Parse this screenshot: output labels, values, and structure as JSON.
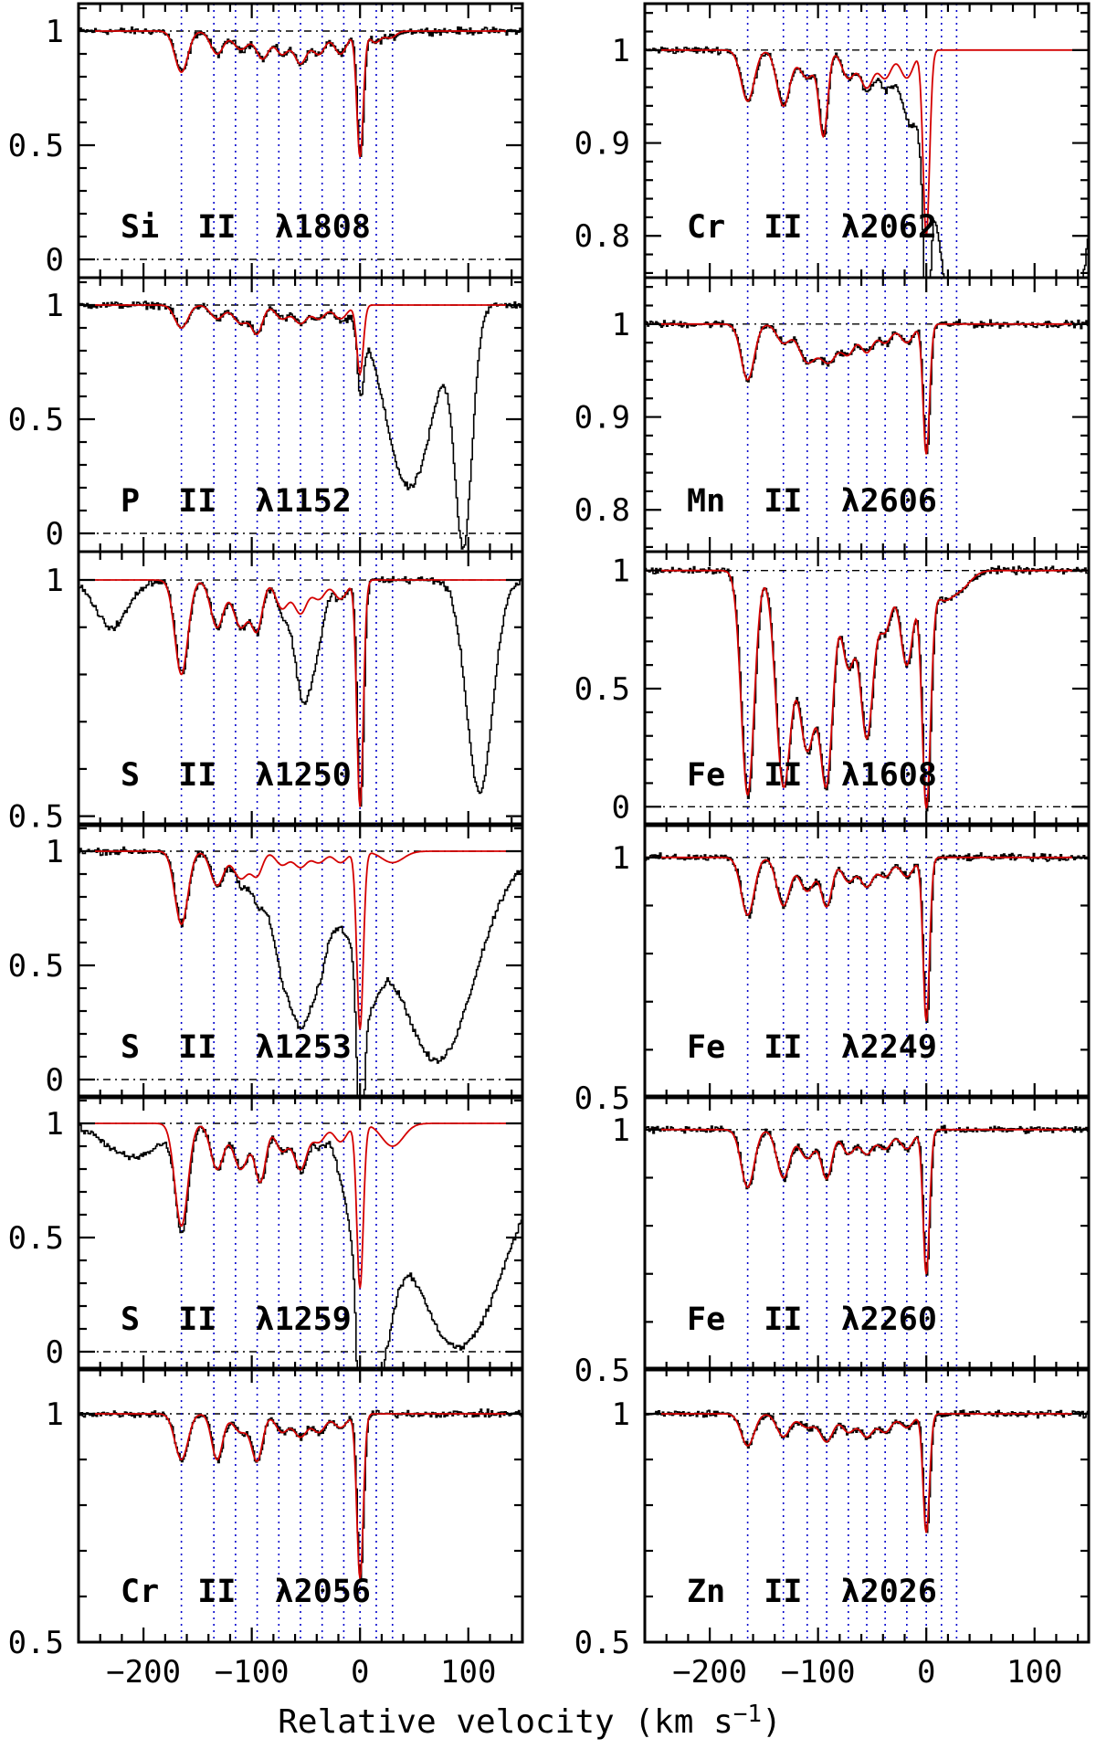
{
  "figure": {
    "xlabel": "Relative velocity (km s",
    "xlabel_sup": "−1",
    "xlabel_close": ")"
  },
  "colors": {
    "data": "#000000",
    "model": "#d40000",
    "components": "#0000cc",
    "continuum": "#000000"
  },
  "chart_data": [
    {
      "type": "line",
      "title": "Si II λ1808",
      "label": "Si  II  λ1808",
      "xlim": [
        -260,
        150
      ],
      "ylim": [
        -0.08,
        1.12
      ],
      "yticks": [
        0,
        0.5,
        1
      ],
      "ytick_labels": [
        "0",
        "0.5",
        "1"
      ],
      "zero_line": true,
      "absorption": [
        [
          -165,
          0.18,
          6
        ],
        [
          -132,
          0.1,
          6
        ],
        [
          -110,
          0.08,
          7
        ],
        [
          -90,
          0.12,
          6
        ],
        [
          -72,
          0.1,
          6
        ],
        [
          -55,
          0.14,
          6
        ],
        [
          -38,
          0.1,
          6
        ],
        [
          -18,
          0.1,
          6
        ],
        [
          0,
          0.55,
          3
        ],
        [
          14,
          0.05,
          5
        ],
        [
          28,
          0.03,
          5
        ]
      ],
      "blends": []
    },
    {
      "type": "line",
      "title": "Cr II λ2062",
      "label": "Cr  II  λ2062",
      "xlim": [
        -260,
        150
      ],
      "ylim": [
        0.755,
        1.05
      ],
      "yticks": [
        0.8,
        0.9,
        1
      ],
      "ytick_labels": [
        "0.8",
        "0.9",
        "1"
      ],
      "zero_line": false,
      "absorption": [
        [
          -165,
          0.055,
          6
        ],
        [
          -132,
          0.06,
          6
        ],
        [
          -110,
          0.03,
          7
        ],
        [
          -95,
          0.09,
          4
        ],
        [
          -72,
          0.03,
          6
        ],
        [
          -55,
          0.04,
          6
        ],
        [
          -38,
          0.03,
          6
        ],
        [
          -18,
          0.03,
          6
        ],
        [
          0,
          0.2,
          3
        ]
      ],
      "blends": [
        [
          80,
          0.9,
          40
        ]
      ]
    },
    {
      "type": "line",
      "title": "P II λ1152",
      "label": "P  II  λ1152",
      "xlim": [
        -260,
        150
      ],
      "ylim": [
        -0.08,
        1.12
      ],
      "yticks": [
        0,
        0.5,
        1
      ],
      "ytick_labels": [
        "0",
        "0.5",
        "1"
      ],
      "zero_line": true,
      "absorption": [
        [
          -165,
          0.1,
          6
        ],
        [
          -132,
          0.06,
          6
        ],
        [
          -110,
          0.08,
          7
        ],
        [
          -95,
          0.12,
          5
        ],
        [
          -72,
          0.06,
          6
        ],
        [
          -55,
          0.08,
          6
        ],
        [
          -38,
          0.06,
          6
        ],
        [
          -18,
          0.06,
          6
        ],
        [
          0,
          0.3,
          3
        ]
      ],
      "blends": [
        [
          45,
          0.8,
          22
        ],
        [
          95,
          1.0,
          8
        ]
      ]
    },
    {
      "type": "line",
      "title": "Mn II λ2606",
      "label": "Mn  II  λ2606",
      "xlim": [
        -260,
        150
      ],
      "ylim": [
        0.755,
        1.05
      ],
      "yticks": [
        0.8,
        0.9,
        1
      ],
      "ytick_labels": [
        "0.8",
        "0.9",
        "1"
      ],
      "zero_line": false,
      "absorption": [
        [
          -165,
          0.06,
          6
        ],
        [
          -132,
          0.02,
          6
        ],
        [
          -110,
          0.04,
          8
        ],
        [
          -90,
          0.04,
          8
        ],
        [
          -72,
          0.03,
          6
        ],
        [
          -55,
          0.03,
          6
        ],
        [
          -38,
          0.02,
          6
        ],
        [
          -18,
          0.02,
          6
        ],
        [
          0,
          0.14,
          3
        ]
      ],
      "blends": []
    },
    {
      "type": "line",
      "title": "S II λ1250",
      "label": "S  II  λ1250",
      "xlim": [
        -260,
        150
      ],
      "ylim": [
        0.48,
        1.06
      ],
      "yticks": [
        0.5,
        1
      ],
      "ytick_labels": [
        "0.5",
        "1"
      ],
      "zero_line": false,
      "absorption": [
        [
          -165,
          0.2,
          6
        ],
        [
          -132,
          0.1,
          6
        ],
        [
          -110,
          0.1,
          7
        ],
        [
          -95,
          0.1,
          5
        ],
        [
          -72,
          0.06,
          6
        ],
        [
          -55,
          0.07,
          6
        ],
        [
          -38,
          0.04,
          6
        ],
        [
          -18,
          0.04,
          6
        ],
        [
          0,
          0.48,
          3
        ]
      ],
      "blends": [
        [
          -50,
          0.2,
          10
        ],
        [
          -230,
          0.1,
          15
        ],
        [
          110,
          0.45,
          12
        ]
      ]
    },
    {
      "type": "line",
      "title": "Fe II λ1608",
      "label": "Fe  II  λ1608",
      "xlim": [
        -260,
        150
      ],
      "ylim": [
        -0.08,
        1.08
      ],
      "yticks": [
        0,
        0.5,
        1
      ],
      "ytick_labels": [
        "0",
        "0.5",
        "1"
      ],
      "zero_line": true,
      "absorption": [
        [
          -165,
          0.95,
          6
        ],
        [
          -132,
          0.9,
          7
        ],
        [
          -110,
          0.75,
          8
        ],
        [
          -92,
          0.85,
          6
        ],
        [
          -72,
          0.4,
          6
        ],
        [
          -55,
          0.7,
          6
        ],
        [
          -38,
          0.25,
          6
        ],
        [
          -18,
          0.4,
          6
        ],
        [
          0,
          0.98,
          4
        ],
        [
          14,
          0.1,
          8
        ],
        [
          30,
          0.08,
          10
        ]
      ],
      "blends": []
    },
    {
      "type": "line",
      "title": "S II λ1253",
      "label": "S  II  λ1253",
      "xlim": [
        -260,
        150
      ],
      "ylim": [
        -0.08,
        1.12
      ],
      "yticks": [
        0,
        0.5,
        1
      ],
      "ytick_labels": [
        "0",
        "0.5",
        "1"
      ],
      "zero_line": true,
      "absorption": [
        [
          -165,
          0.32,
          6
        ],
        [
          -132,
          0.15,
          6
        ],
        [
          -110,
          0.12,
          7
        ],
        [
          -95,
          0.1,
          5
        ],
        [
          -72,
          0.06,
          6
        ],
        [
          -55,
          0.07,
          6
        ],
        [
          -38,
          0.05,
          6
        ],
        [
          -18,
          0.05,
          6
        ],
        [
          0,
          0.78,
          3
        ],
        [
          30,
          0.05,
          10
        ]
      ],
      "blends": [
        [
          -55,
          0.7,
          22
        ],
        [
          70,
          0.92,
          35
        ],
        [
          5,
          0.5,
          12
        ]
      ]
    },
    {
      "type": "line",
      "title": "Fe II λ2249",
      "label": "Fe  II  λ2249",
      "xlim": [
        -260,
        150
      ],
      "ylim": [
        0.5,
        1.07
      ],
      "yticks": [
        0.5,
        1
      ],
      "ytick_labels": [
        "0.5",
        "1"
      ],
      "zero_line": false,
      "absorption": [
        [
          -165,
          0.12,
          6
        ],
        [
          -132,
          0.1,
          6
        ],
        [
          -110,
          0.07,
          7
        ],
        [
          -92,
          0.1,
          5
        ],
        [
          -72,
          0.05,
          6
        ],
        [
          -55,
          0.06,
          6
        ],
        [
          -38,
          0.04,
          6
        ],
        [
          -18,
          0.04,
          6
        ],
        [
          0,
          0.34,
          3
        ]
      ],
      "blends": []
    },
    {
      "type": "line",
      "title": "S II λ1259",
      "label": "S  II  λ1259",
      "xlim": [
        -260,
        150
      ],
      "ylim": [
        -0.08,
        1.12
      ],
      "yticks": [
        0,
        0.5,
        1
      ],
      "ytick_labels": [
        "0",
        "0.5",
        "1"
      ],
      "zero_line": true,
      "absorption": [
        [
          -165,
          0.45,
          6
        ],
        [
          -132,
          0.2,
          6
        ],
        [
          -110,
          0.2,
          7
        ],
        [
          -92,
          0.25,
          5
        ],
        [
          -72,
          0.12,
          6
        ],
        [
          -55,
          0.2,
          6
        ],
        [
          -38,
          0.08,
          6
        ],
        [
          -18,
          0.08,
          6
        ],
        [
          0,
          0.72,
          3
        ],
        [
          30,
          0.1,
          10
        ]
      ],
      "blends": [
        [
          -210,
          0.15,
          25
        ],
        [
          10,
          0.95,
          14
        ],
        [
          90,
          0.98,
          45
        ]
      ]
    },
    {
      "type": "line",
      "title": "Fe II λ2260",
      "label": "Fe  II  λ2260",
      "xlim": [
        -260,
        150
      ],
      "ylim": [
        0.5,
        1.07
      ],
      "yticks": [
        0.5,
        1
      ],
      "ytick_labels": [
        "0.5",
        "1"
      ],
      "zero_line": false,
      "absorption": [
        [
          -165,
          0.12,
          6
        ],
        [
          -132,
          0.1,
          6
        ],
        [
          -110,
          0.06,
          7
        ],
        [
          -92,
          0.1,
          5
        ],
        [
          -72,
          0.05,
          6
        ],
        [
          -55,
          0.05,
          6
        ],
        [
          -38,
          0.04,
          6
        ],
        [
          -18,
          0.04,
          6
        ],
        [
          0,
          0.3,
          3
        ]
      ],
      "blends": []
    },
    {
      "type": "line",
      "title": "Cr II λ2056",
      "label": "Cr  II  λ2056",
      "xlim": [
        -260,
        150
      ],
      "ylim": [
        0.5,
        1.1
      ],
      "yticks": [
        0.5,
        1
      ],
      "ytick_labels": [
        "0.5",
        "1"
      ],
      "zero_line": false,
      "absorption": [
        [
          -165,
          0.1,
          6
        ],
        [
          -132,
          0.1,
          5
        ],
        [
          -110,
          0.04,
          7
        ],
        [
          -95,
          0.1,
          5
        ],
        [
          -72,
          0.04,
          6
        ],
        [
          -55,
          0.05,
          6
        ],
        [
          -38,
          0.04,
          6
        ],
        [
          -18,
          0.03,
          6
        ],
        [
          0,
          0.36,
          3
        ]
      ],
      "blends": []
    },
    {
      "type": "line",
      "title": "Zn II λ2026",
      "label": "Zn  II  λ2026",
      "xlim": [
        -260,
        150
      ],
      "ylim": [
        0.5,
        1.1
      ],
      "yticks": [
        0.5,
        1
      ],
      "ytick_labels": [
        "0.5",
        "1"
      ],
      "zero_line": false,
      "absorption": [
        [
          -165,
          0.07,
          6
        ],
        [
          -132,
          0.05,
          6
        ],
        [
          -110,
          0.03,
          7
        ],
        [
          -92,
          0.06,
          6
        ],
        [
          -72,
          0.04,
          6
        ],
        [
          -55,
          0.05,
          6
        ],
        [
          -38,
          0.04,
          6
        ],
        [
          -18,
          0.03,
          6
        ],
        [
          0,
          0.26,
          3
        ]
      ],
      "blends": []
    }
  ],
  "x_axis": {
    "ticks": [
      -200,
      -100,
      0,
      100
    ],
    "tick_labels": [
      "−200",
      "−100",
      "0",
      "100"
    ],
    "minor_step": 20
  },
  "components_left": [
    -165,
    -135,
    -115,
    -95,
    -75,
    -55,
    -35,
    -15,
    0,
    15,
    30
  ],
  "components_right": [
    -165,
    -132,
    -110,
    -92,
    -72,
    -55,
    -38,
    -18,
    0,
    14,
    28
  ]
}
